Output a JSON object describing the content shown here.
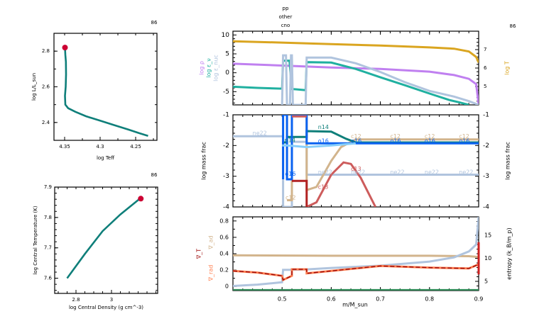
{
  "chart_data": [
    {
      "id": "hr",
      "type": "line",
      "title": "",
      "model_number": "86",
      "xlabel": "log Teff",
      "ylabel": "log L/L_sun",
      "xlim": [
        4.365,
        4.22
      ],
      "ylim": [
        2.3,
        2.9
      ],
      "xticks": [
        4.35,
        4.3,
        4.25
      ],
      "xtick_labels": [
        "4.35",
        "4.3",
        "4.25"
      ],
      "yticks": [
        2.4,
        2.6,
        2.8
      ],
      "ytick_labels": [
        "2.4",
        "2.6",
        "2.8"
      ],
      "series": [
        {
          "name": "track",
          "color": "#0f7f7a",
          "x": [
            4.2325,
            4.245,
            4.26,
            4.28,
            4.3,
            4.32,
            4.335,
            4.345,
            4.349,
            4.3495,
            4.3485,
            4.348,
            4.3482,
            4.349,
            4.3495
          ],
          "y": [
            2.325,
            2.34,
            2.36,
            2.385,
            2.41,
            2.435,
            2.46,
            2.48,
            2.5,
            2.55,
            2.6,
            2.67,
            2.74,
            2.78,
            2.82
          ]
        }
      ],
      "marker": {
        "x": 4.3495,
        "y": 2.82,
        "color": "#cc0033"
      }
    },
    {
      "id": "center",
      "type": "line",
      "model_number": "86",
      "xlabel": "log Central Density (g cm^-3)",
      "ylabel": "log Central Temperature (K)",
      "xlim": [
        2.68,
        3.26
      ],
      "ylim": [
        7.55,
        7.9
      ],
      "xticks": [
        2.8,
        3.0
      ],
      "xtick_labels": [
        "2.8",
        "3"
      ],
      "yticks": [
        7.6,
        7.7,
        7.8,
        7.9
      ],
      "ytick_labels": [
        "7.6",
        "7.7",
        "7.8",
        "7.9"
      ],
      "series": [
        {
          "name": "track",
          "color": "#0f7f7a",
          "x": [
            2.75,
            2.85,
            2.95,
            3.05,
            3.16
          ],
          "y": [
            7.6,
            7.68,
            7.755,
            7.81,
            7.862
          ]
        }
      ],
      "marker": {
        "x": 3.165,
        "y": 7.862,
        "color": "#cc0033"
      }
    },
    {
      "id": "profile-top",
      "type": "line",
      "model_number": "86",
      "top_labels": [
        "pp",
        "other",
        "cno"
      ],
      "xlim": [
        0.4,
        0.9
      ],
      "ylim_left": [
        -8.5,
        11
      ],
      "yticks_left": [
        -5,
        0,
        5,
        10
      ],
      "ytick_labels_left": [
        "-5",
        "0",
        "5",
        "10"
      ],
      "ylim_right": [
        4,
        8
      ],
      "yticks_right": [
        5,
        6,
        7
      ],
      "ytick_labels_right": [
        "5",
        "6",
        "7"
      ],
      "left_labels": [
        {
          "text": "log ρ",
          "color": "#c080f0"
        },
        {
          "text": "log ε_ν",
          "color": "#20b0a0"
        },
        {
          "text": "log ε_nuc",
          "color": "#b0c4de"
        }
      ],
      "right_label": {
        "text": "log T",
        "color": "#daa520"
      },
      "series": [
        {
          "name": "log T",
          "axis": "right",
          "color": "#daa520",
          "x": [
            0.4,
            0.5,
            0.6,
            0.7,
            0.8,
            0.85,
            0.88,
            0.895,
            0.9
          ],
          "y": [
            7.45,
            7.38,
            7.3,
            7.22,
            7.12,
            7.05,
            6.9,
            6.6,
            6.3
          ]
        },
        {
          "name": "log rho",
          "axis": "left",
          "color": "#c080f0",
          "x": [
            0.4,
            0.5,
            0.6,
            0.7,
            0.8,
            0.85,
            0.88,
            0.895,
            0.9
          ],
          "y": [
            2.4,
            1.9,
            1.4,
            1.0,
            0.3,
            -0.6,
            -1.6,
            -3.0,
            -8.5
          ]
        },
        {
          "name": "log eps_nu",
          "axis": "left",
          "color": "#20b0a0",
          "x": [
            0.4,
            0.45,
            0.5,
            0.502,
            0.515,
            0.52,
            0.53,
            0.548,
            0.55,
            0.6,
            0.65,
            0.7,
            0.75,
            0.8,
            0.84,
            0.86,
            0.88
          ],
          "y": [
            -3.7,
            -4.0,
            -4.2,
            3.2,
            3.2,
            -4.3,
            -4.4,
            -4.6,
            2.8,
            2.7,
            1.0,
            -1.2,
            -3.3,
            -5.5,
            -7.2,
            -7.8,
            -8.5
          ]
        },
        {
          "name": "log eps_nuc",
          "axis": "left",
          "color": "#b0c4de",
          "x": [
            0.5,
            0.502,
            0.508,
            0.51,
            0.516,
            0.518,
            0.52,
            0.522,
            0.548,
            0.55,
            0.6,
            0.65,
            0.7,
            0.75,
            0.8,
            0.85,
            0.88,
            0.9
          ],
          "y": [
            -8.5,
            4.6,
            4.6,
            -8.5,
            -8.5,
            4.6,
            4.6,
            -8.5,
            -8.5,
            4.0,
            4.0,
            2.5,
            0.2,
            -2.5,
            -4.8,
            -6.3,
            -7.5,
            -8.5
          ]
        }
      ]
    },
    {
      "id": "profile-mid",
      "type": "line",
      "xlim": [
        0.4,
        0.9
      ],
      "ylim": [
        -4,
        -1
      ],
      "yticks": [
        -4,
        -3,
        -2,
        -1
      ],
      "ytick_labels": [
        "-4",
        "-3",
        "-2",
        "-1"
      ],
      "ylabel": "log mass frac",
      "series": [
        {
          "name": "ne22",
          "color": "#b0c4de",
          "x": [
            0.4,
            0.502,
            0.502,
            0.52,
            0.52,
            0.55,
            0.55,
            0.9
          ],
          "y": [
            -1.7,
            -1.7,
            -4.0,
            -4.0,
            -1.88,
            -1.88,
            -2.95,
            -2.95
          ]
        },
        {
          "name": "c12",
          "color": "#d2b48c",
          "x": [
            0.51,
            0.52,
            0.52,
            0.55,
            0.55,
            0.57,
            0.6,
            0.62,
            0.65,
            0.9
          ],
          "y": [
            -3.78,
            -3.78,
            -1.0,
            -1.0,
            -3.45,
            -3.35,
            -2.5,
            -2.05,
            -1.8,
            -1.8
          ]
        },
        {
          "name": "n14",
          "color": "#0f7f7a",
          "x": [
            0.5,
            0.51,
            0.51,
            0.55,
            0.55,
            0.6,
            0.63,
            0.65,
            0.9
          ],
          "y": [
            -1.9,
            -1.9,
            -1.72,
            -1.72,
            -1.53,
            -1.55,
            -1.78,
            -1.9,
            -1.9
          ]
        },
        {
          "name": "o16",
          "color": "#0a62f0",
          "x": [
            0.502,
            0.502,
            0.51,
            0.51,
            0.52,
            0.52,
            0.55,
            0.55,
            0.9
          ],
          "y": [
            -3.1,
            -1.0,
            -1.0,
            -3.1,
            -3.1,
            -1.0,
            -1.0,
            -1.93,
            -1.93
          ]
        },
        {
          "name": "c13",
          "color": "#cd5c5c",
          "x": [
            0.55,
            0.57,
            0.6,
            0.625,
            0.64,
            0.66,
            0.69
          ],
          "y": [
            -4.0,
            -3.85,
            -2.95,
            -2.55,
            -2.6,
            -3.05,
            -4.0
          ]
        },
        {
          "name": "o16-lite",
          "color": "#87cefa",
          "x": [
            0.5,
            0.51,
            0.55,
            0.6,
            0.65
          ],
          "y": [
            -2.0,
            -2.0,
            -2.05,
            -2.0,
            -1.93
          ]
        },
        {
          "name": "n13",
          "color": "#b22222",
          "x": [
            0.52,
            0.55,
            0.55
          ],
          "y": [
            -3.15,
            -3.15,
            -4.0
          ]
        },
        {
          "name": "red-top",
          "color": "#cd5c5c",
          "x": [
            0.52,
            0.55
          ],
          "y": [
            -1.05,
            -1.05
          ]
        }
      ],
      "annotations": [
        {
          "text": "ne22",
          "x": 0.44,
          "y": -1.6,
          "color": "#b0c4de"
        },
        {
          "text": "n14",
          "x": 0.505,
          "y": -1.83,
          "color": "#0f7f7a"
        },
        {
          "text": "o16",
          "x": 0.506,
          "y": -2.93,
          "color": "#0a62f0"
        },
        {
          "text": "c12",
          "x": 0.507,
          "y": -3.7,
          "color": "#d2b48c"
        },
        {
          "text": "n14",
          "x": 0.573,
          "y": -1.4,
          "color": "#0f7f7a"
        },
        {
          "text": "o16",
          "x": 0.573,
          "y": -1.85,
          "color": "#0a62f0"
        },
        {
          "text": "ne22",
          "x": 0.573,
          "y": -2.87,
          "color": "#b0c4de"
        },
        {
          "text": "c13",
          "x": 0.573,
          "y": -3.35,
          "color": "#cd5c5c"
        },
        {
          "text": "c12",
          "x": 0.64,
          "y": -1.7,
          "color": "#d2b48c"
        },
        {
          "text": "o16",
          "x": 0.64,
          "y": -1.85,
          "color": "#0a62f0"
        },
        {
          "text": "c13",
          "x": 0.64,
          "y": -2.77,
          "color": "#cd5c5c"
        },
        {
          "text": "ne22",
          "x": 0.64,
          "y": -2.87,
          "color": "#b0c4de"
        },
        {
          "text": "c12",
          "x": 0.72,
          "y": -1.7,
          "color": "#d2b48c"
        },
        {
          "text": "o16",
          "x": 0.72,
          "y": -1.85,
          "color": "#0a62f0"
        },
        {
          "text": "ne22",
          "x": 0.72,
          "y": -2.87,
          "color": "#b0c4de"
        },
        {
          "text": "c12",
          "x": 0.79,
          "y": -1.7,
          "color": "#d2b48c"
        },
        {
          "text": "o16",
          "x": 0.79,
          "y": -1.85,
          "color": "#0a62f0"
        },
        {
          "text": "ne22",
          "x": 0.79,
          "y": -2.87,
          "color": "#b0c4de"
        },
        {
          "text": "c12",
          "x": 0.86,
          "y": -1.7,
          "color": "#d2b48c"
        },
        {
          "text": "o16",
          "x": 0.86,
          "y": -1.85,
          "color": "#0a62f0"
        },
        {
          "text": "ne22",
          "x": 0.86,
          "y": -2.87,
          "color": "#b0c4de"
        }
      ]
    },
    {
      "id": "profile-bot",
      "type": "line",
      "xlim": [
        0.4,
        0.9
      ],
      "xlabel": "m/M_sun",
      "xticks": [
        0.5,
        0.6,
        0.7,
        0.8,
        0.9
      ],
      "xtick_labels": [
        "0.5",
        "0.6",
        "0.7",
        "0.8",
        "0.9"
      ],
      "ylim_left": [
        -0.05,
        0.85
      ],
      "yticks_left": [
        0,
        0.2,
        0.4,
        0.6,
        0.8
      ],
      "ytick_labels_left": [
        "0",
        "0.2",
        "0.4",
        "0.6",
        "0.8"
      ],
      "ylim_right": [
        3,
        19
      ],
      "yticks_right": [
        5,
        10,
        15
      ],
      "ytick_labels_right": [
        "5",
        "10",
        "15"
      ],
      "left_labels": [
        {
          "text": "∇_ad",
          "color": "#d2b48c"
        },
        {
          "text": "∇_T",
          "color": "#a01010"
        },
        {
          "text": "∇_rad",
          "color": "#ff7f50"
        }
      ],
      "right_label": {
        "text": "entropy (k_B/m_p)",
        "color": "#000000"
      },
      "series": [
        {
          "name": "grad_ad",
          "axis": "left",
          "color": "#d2b48c",
          "x": [
            0.4,
            0.6,
            0.8,
            0.88,
            0.9
          ],
          "y": [
            0.38,
            0.375,
            0.375,
            0.37,
            0.36
          ]
        },
        {
          "name": "entropy",
          "axis": "right",
          "color": "#b0c4de",
          "x": [
            0.4,
            0.45,
            0.5,
            0.502,
            0.52,
            0.55,
            0.6,
            0.7,
            0.8,
            0.85,
            0.88,
            0.895,
            0.9
          ],
          "y": [
            4.0,
            4.3,
            4.8,
            7.5,
            7.5,
            7.6,
            7.9,
            8.4,
            9.3,
            10.2,
            11.5,
            13.0,
            19.0
          ]
        },
        {
          "name": "grad_rad",
          "axis": "left",
          "color": "#ff7f50",
          "x": [
            0.4,
            0.45,
            0.5,
            0.502,
            0.52,
            0.52,
            0.55,
            0.55,
            0.6,
            0.65,
            0.7,
            0.8,
            0.88,
            0.9
          ],
          "y": [
            0.19,
            0.17,
            0.13,
            0.08,
            0.13,
            0.21,
            0.21,
            0.16,
            0.19,
            0.22,
            0.25,
            0.23,
            0.22,
            0.27
          ]
        },
        {
          "name": "grad_T",
          "axis": "left",
          "color": "#a01010",
          "dashed": true,
          "x": [
            0.4,
            0.45,
            0.5,
            0.502,
            0.52,
            0.52,
            0.55,
            0.55,
            0.6,
            0.65,
            0.7,
            0.8,
            0.88,
            0.9
          ],
          "y": [
            0.19,
            0.17,
            0.13,
            0.08,
            0.13,
            0.21,
            0.21,
            0.16,
            0.19,
            0.22,
            0.25,
            0.23,
            0.22,
            0.27
          ]
        },
        {
          "name": "zero-line",
          "axis": "left",
          "color": "#2e8b57",
          "x": [
            0.4,
            0.9
          ],
          "y": [
            -0.045,
            -0.045
          ]
        }
      ]
    }
  ]
}
